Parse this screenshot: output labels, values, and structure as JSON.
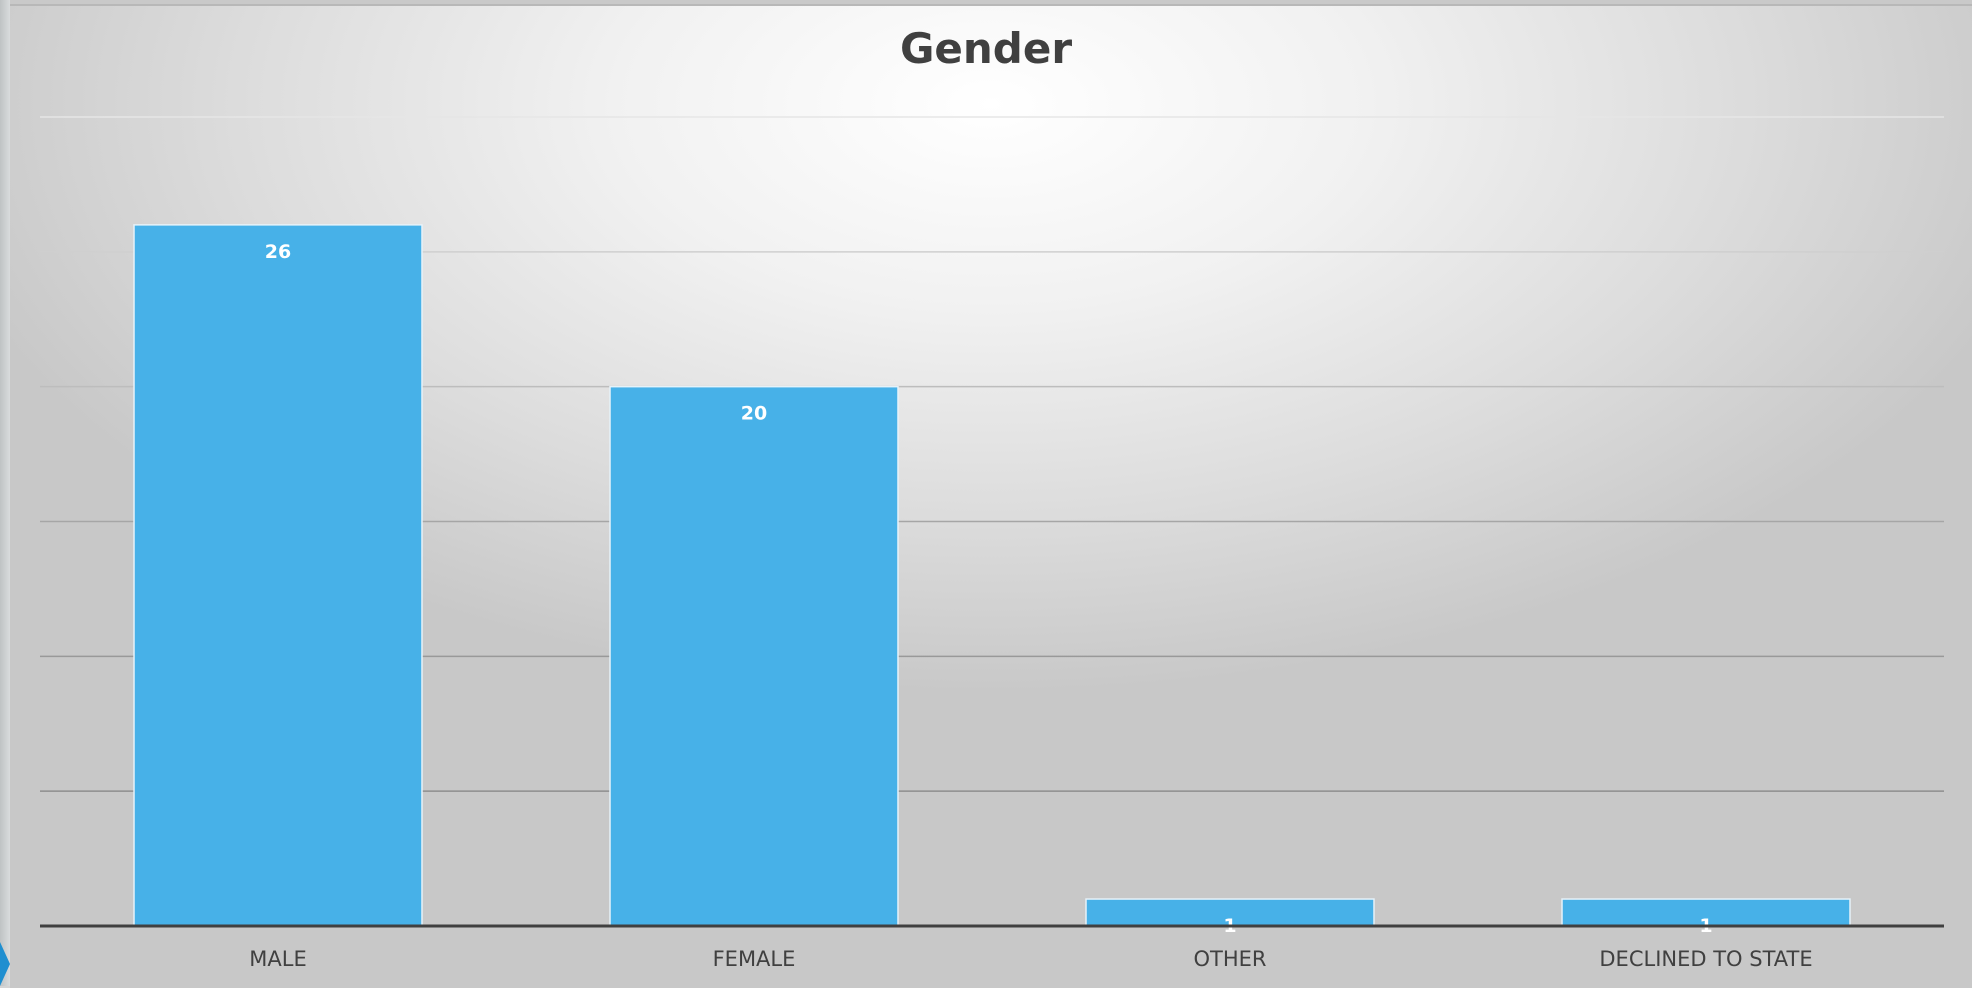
{
  "chart_data": {
    "type": "bar",
    "title": "Gender",
    "categories": [
      "MALE",
      "FEMALE",
      "OTHER",
      "DECLINED TO STATE"
    ],
    "values": [
      26,
      20,
      1,
      1
    ],
    "data_labels": [
      "26",
      "20",
      "1",
      "1"
    ],
    "xlabel": "",
    "ylabel": "",
    "ylim": [
      0,
      30
    ],
    "grid": true,
    "legend": "none",
    "colors": {
      "bar": "#47b1e8",
      "bar_outline": "#e6f2f9",
      "data_label": "#ffffff",
      "axis_line": "#404040",
      "text": "#404040"
    }
  }
}
